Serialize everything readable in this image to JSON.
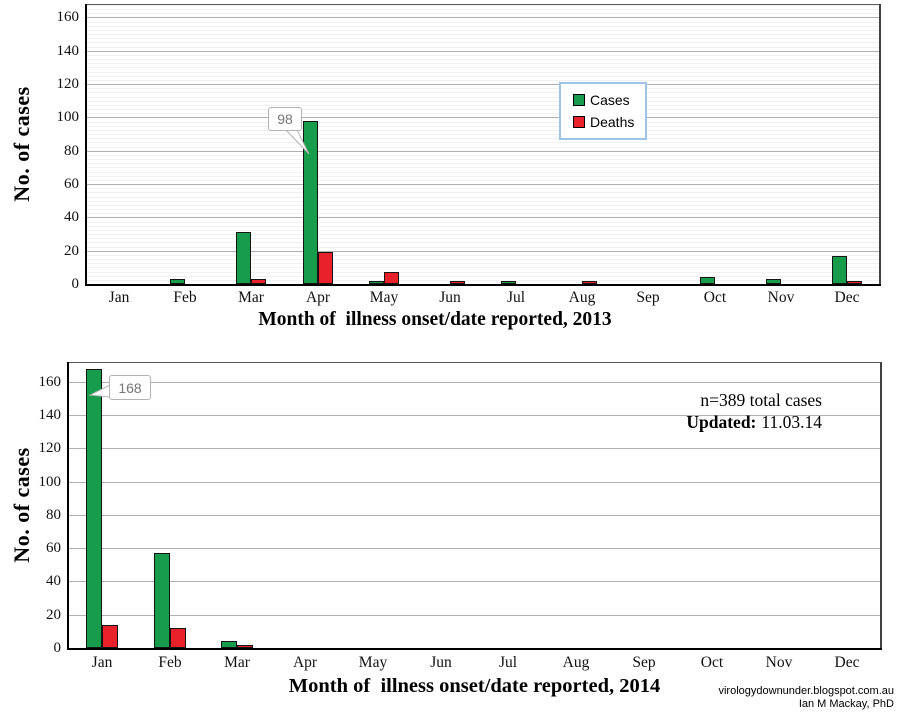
{
  "colors": {
    "cases": "#169c4b",
    "deaths": "#e8212a",
    "bar_border": "#141414",
    "legend_border": "#9dc3e6",
    "major_grid": "#b0b0b0",
    "minor_grid": "#f1f1f1",
    "callout_text": "#767676",
    "callout_border": "#b3b3b3"
  },
  "legend": {
    "cases_label": "Cases",
    "deaths_label": "Deaths"
  },
  "footer": {
    "line1": "virologydownunder.blogspot.com.au",
    "line2": "Ian M Mackay, PhD"
  },
  "chart_data": [
    {
      "type": "bar",
      "title": "Month of  illness onset/date reported, 2013",
      "ylabel": "No. of cases",
      "categories": [
        "Jan",
        "Feb",
        "Mar",
        "Apr",
        "May",
        "Jun",
        "Jul",
        "Aug",
        "Sep",
        "Oct",
        "Nov",
        "Dec"
      ],
      "series": [
        {
          "name": "Cases",
          "color_key": "cases",
          "values": [
            0,
            3,
            31,
            98,
            2,
            0,
            2,
            0,
            0,
            4,
            3,
            17
          ]
        },
        {
          "name": "Deaths",
          "color_key": "deaths",
          "values": [
            0,
            0,
            3,
            19,
            7,
            2,
            0,
            1,
            0,
            0,
            0,
            1
          ]
        }
      ],
      "ylim": [
        0,
        168
      ],
      "ytick_step": 20,
      "minor_step": 2.5,
      "grid": true,
      "legend_position": "inside-upper-middle",
      "callout": {
        "text": "98",
        "month": "Apr",
        "series": "Cases"
      }
    },
    {
      "type": "bar",
      "title": "Month of  illness onset/date reported, 2014",
      "ylabel": "No. of cases",
      "categories": [
        "Jan",
        "Feb",
        "Mar",
        "Apr",
        "May",
        "Jun",
        "Jul",
        "Aug",
        "Sep",
        "Oct",
        "Nov",
        "Dec"
      ],
      "series": [
        {
          "name": "Cases",
          "color_key": "cases",
          "values": [
            168,
            57,
            4,
            0,
            0,
            0,
            0,
            0,
            0,
            0,
            0,
            0
          ]
        },
        {
          "name": "Deaths",
          "color_key": "deaths",
          "values": [
            14,
            12,
            2,
            0,
            0,
            0,
            0,
            0,
            0,
            0,
            0,
            0
          ]
        }
      ],
      "ylim": [
        0,
        172
      ],
      "ytick_step": 20,
      "minor_step": null,
      "grid": true,
      "callout": {
        "text": "168",
        "month": "Jan",
        "series": "Cases"
      },
      "annotation": {
        "line1": "n=389 total cases",
        "line2_bold": "Updated:",
        "line2_value": "11.03.14"
      }
    }
  ]
}
